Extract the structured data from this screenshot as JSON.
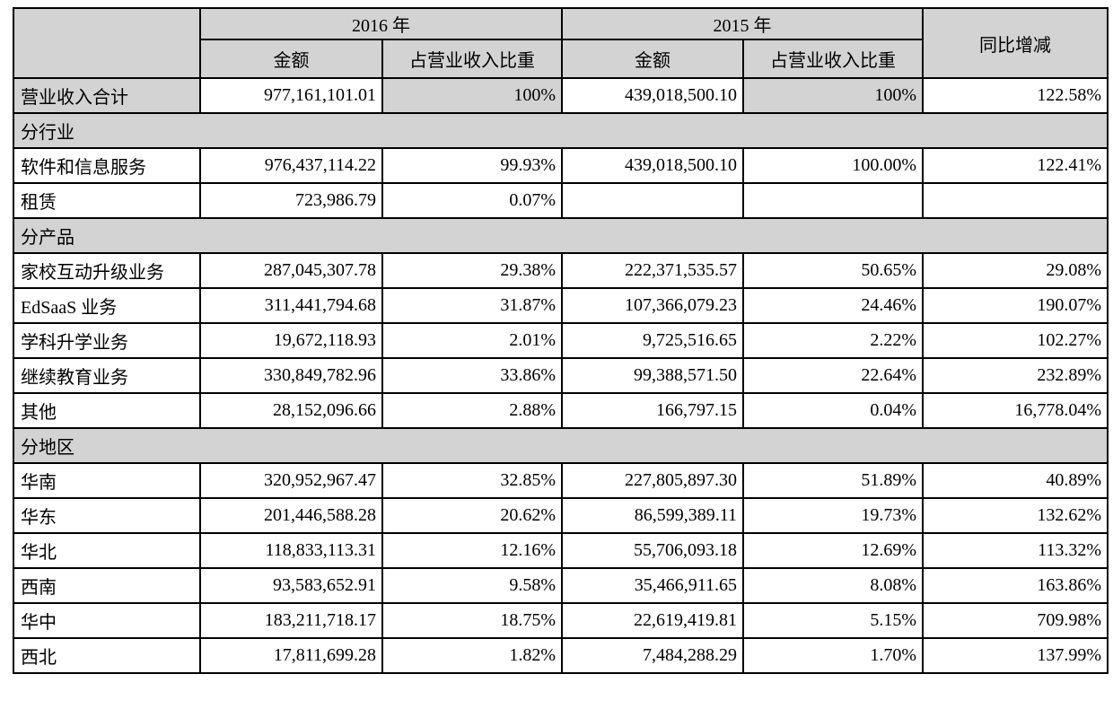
{
  "table": {
    "header": {
      "corner": "",
      "year_2016": "2016 年",
      "year_2015": "2015 年",
      "yoy": "同比增减",
      "amount_label": "金额",
      "ratio_label": "占营业收入比重"
    },
    "column_keys": [
      "row-label",
      "amount-2016",
      "ratio-2016",
      "amount-2015",
      "ratio-2015",
      "yoy"
    ],
    "rows": [
      {
        "type": "data",
        "shaded_cells": [
          0,
          2,
          4
        ],
        "cells": [
          "营业收入合计",
          "977,161,101.01",
          "100%",
          "439,018,500.10",
          "100%",
          "122.58%"
        ]
      },
      {
        "type": "section",
        "cells": [
          "分行业"
        ]
      },
      {
        "type": "data",
        "cells": [
          "软件和信息服务",
          "976,437,114.22",
          "99.93%",
          "439,018,500.10",
          "100.00%",
          "122.41%"
        ]
      },
      {
        "type": "data",
        "cells": [
          "租赁",
          "723,986.79",
          "0.07%",
          "",
          "",
          ""
        ]
      },
      {
        "type": "section",
        "cells": [
          "分产品"
        ]
      },
      {
        "type": "data",
        "cells": [
          "家校互动升级业务",
          "287,045,307.78",
          "29.38%",
          "222,371,535.57",
          "50.65%",
          "29.08%"
        ]
      },
      {
        "type": "data",
        "cells": [
          "EdSaaS 业务",
          "311,441,794.68",
          "31.87%",
          "107,366,079.23",
          "24.46%",
          "190.07%"
        ]
      },
      {
        "type": "data",
        "cells": [
          "学科升学业务",
          "19,672,118.93",
          "2.01%",
          "9,725,516.65",
          "2.22%",
          "102.27%"
        ]
      },
      {
        "type": "data",
        "cells": [
          "继续教育业务",
          "330,849,782.96",
          "33.86%",
          "99,388,571.50",
          "22.64%",
          "232.89%"
        ]
      },
      {
        "type": "data",
        "cells": [
          "其他",
          "28,152,096.66",
          "2.88%",
          "166,797.15",
          "0.04%",
          "16,778.04%"
        ]
      },
      {
        "type": "section",
        "cells": [
          "分地区"
        ]
      },
      {
        "type": "data",
        "cells": [
          "华南",
          "320,952,967.47",
          "32.85%",
          "227,805,897.30",
          "51.89%",
          "40.89%"
        ]
      },
      {
        "type": "data",
        "cells": [
          "华东",
          "201,446,588.28",
          "20.62%",
          "86,599,389.11",
          "19.73%",
          "132.62%"
        ]
      },
      {
        "type": "data",
        "cells": [
          "华北",
          "118,833,113.31",
          "12.16%",
          "55,706,093.18",
          "12.69%",
          "113.32%"
        ]
      },
      {
        "type": "data",
        "cells": [
          "西南",
          "93,583,652.91",
          "9.58%",
          "35,466,911.65",
          "8.08%",
          "163.86%"
        ]
      },
      {
        "type": "data",
        "cells": [
          "华中",
          "183,211,718.17",
          "18.75%",
          "22,619,419.81",
          "5.15%",
          "709.98%"
        ]
      },
      {
        "type": "data",
        "cells": [
          "西北",
          "17,811,699.28",
          "1.82%",
          "7,484,288.29",
          "1.70%",
          "137.99%"
        ]
      }
    ],
    "colors": {
      "shading": "#d3d3d3",
      "border": "#000000"
    }
  }
}
